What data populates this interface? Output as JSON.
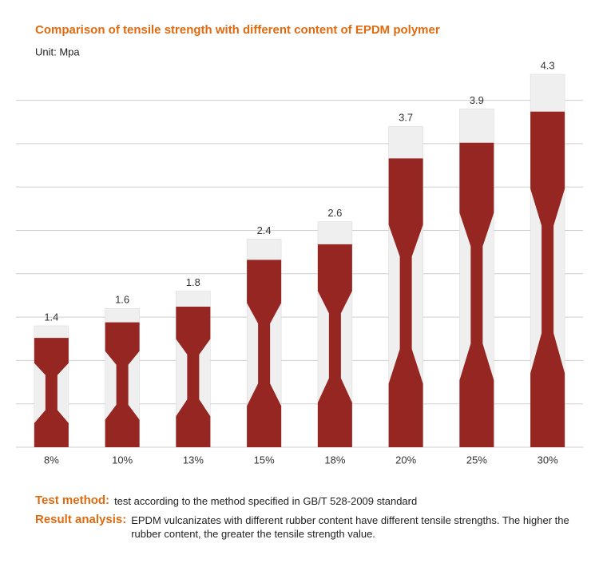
{
  "chart_data": {
    "type": "bar",
    "title": "Comparison of tensile strength with different content of EPDM polymer",
    "subtitle": "Unit: Mpa",
    "categories": [
      "8%",
      "10%",
      "13%",
      "15%",
      "18%",
      "20%",
      "25%",
      "30%"
    ],
    "values": [
      1.4,
      1.6,
      1.8,
      2.4,
      2.6,
      3.7,
      3.9,
      4.3
    ],
    "color": "#952622",
    "cap_color": "#efefef",
    "ylim": [
      0,
      4.3
    ],
    "yticks": [
      0,
      0.5,
      1,
      1.5,
      2,
      2.5,
      3,
      3.5,
      4
    ],
    "grid": true
  },
  "notes": {
    "test_method": {
      "label": "Test method:",
      "text": "test according to the method specified in GB/T 528-2009 standard"
    },
    "result_analysis": {
      "label": "Result analysis:",
      "text": "EPDM vulcanizates with different rubber content have different tensile strengths. The higher the rubber content, the greater the tensile strength value."
    }
  }
}
